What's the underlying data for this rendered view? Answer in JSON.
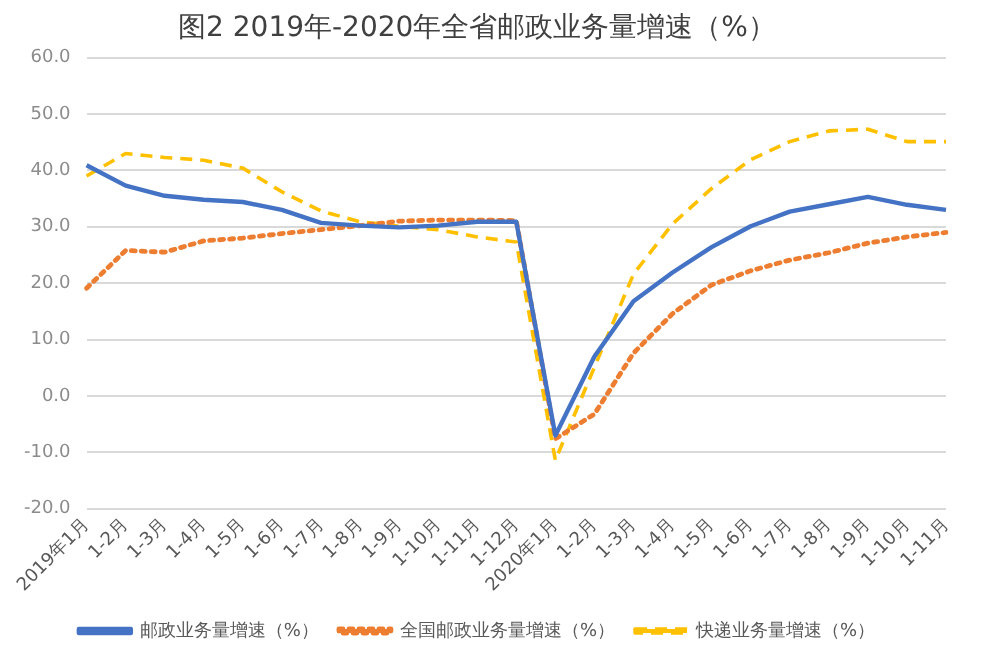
{
  "chart_data": {
    "type": "line",
    "title": "图2 2019年-2020年全省邮政业务量增速（%）",
    "categories": [
      "2019年1月",
      "1-2月",
      "1-3月",
      "1-4月",
      "1-5月",
      "1-6月",
      "1-7月",
      "1-8月",
      "1-9月",
      "1-10月",
      "1-11月",
      "1-12月",
      "2020年1月",
      "1-2月",
      "1-3月",
      "1-4月",
      "1-5月",
      "1-6月",
      "1-7月",
      "1-8月",
      "1-9月",
      "1-10月",
      "1-11月"
    ],
    "series": [
      {
        "name": "邮政业务量增速（%）",
        "color": "#4472c4",
        "line_style": "solid",
        "values": [
          40.9,
          37.3,
          35.5,
          34.8,
          34.4,
          33.0,
          30.7,
          30.2,
          29.9,
          30.2,
          30.9,
          30.9,
          -7.0,
          7.0,
          16.8,
          21.9,
          26.4,
          30.1,
          32.7,
          34.0,
          35.3,
          33.9,
          33.0
        ]
      },
      {
        "name": "全国邮政业务量增速（%）",
        "color": "#ed7d31",
        "line_style": "dotted",
        "values": [
          19.1,
          25.8,
          25.5,
          27.5,
          28.0,
          28.8,
          29.5,
          30.2,
          31.0,
          31.2,
          31.2,
          31.1,
          -7.6,
          -3.2,
          7.6,
          14.6,
          19.7,
          22.2,
          24.1,
          25.4,
          27.1,
          28.2,
          29.0
        ]
      },
      {
        "name": "快递业务量增速（%）",
        "color": "#ffc000",
        "line_style": "dashed",
        "values": [
          39.0,
          43.0,
          42.3,
          41.8,
          40.4,
          36.2,
          32.8,
          30.9,
          30.1,
          29.5,
          28.2,
          27.3,
          -11.4,
          5.1,
          21.6,
          30.5,
          36.8,
          41.9,
          45.1,
          47.0,
          47.3,
          45.1,
          45.1
        ]
      }
    ],
    "ylim": [
      -20,
      60
    ],
    "yticks": [
      {
        "value": -20,
        "label": "-20.0"
      },
      {
        "value": -10,
        "label": "-10.0"
      },
      {
        "value": 0,
        "label": "0.0"
      },
      {
        "value": 10,
        "label": "10.0"
      },
      {
        "value": 20,
        "label": "20.0"
      },
      {
        "value": 30,
        "label": "30.0"
      },
      {
        "value": 40,
        "label": "40.0"
      },
      {
        "value": 50,
        "label": "50.0"
      },
      {
        "value": 60,
        "label": "60.0"
      }
    ],
    "grid": "y",
    "legend": "bottom",
    "marker": "none"
  }
}
